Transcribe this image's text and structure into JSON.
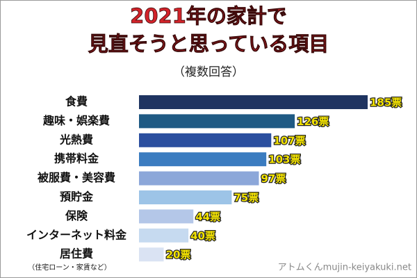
{
  "chart_data": {
    "type": "barh",
    "title": [
      "2021年の家計で",
      "見直そうと思っている項目"
    ],
    "subtitle": "（複数回答）",
    "note": "（住宅ローン・家賃など）",
    "watermark": "アトムくんmujin-keiyakuki.net",
    "categories": [
      "食費",
      "趣味・娯楽費",
      "光熱費",
      "携帯料金",
      "被服費・美容費",
      "預貯金",
      "保険",
      "インターネット料金",
      "居住費"
    ],
    "values": [
      185,
      126,
      107,
      103,
      97,
      75,
      44,
      40,
      20
    ],
    "value_labels": [
      "185票",
      "126票",
      "107票",
      "103票",
      "97票",
      "75票",
      "44票",
      "40票",
      "20票"
    ],
    "colors": [
      "#1f3461",
      "#1f5a84",
      "#2b4f9f",
      "#3b7cc0",
      "#8ca7d9",
      "#9dc4e7",
      "#b4c7e8",
      "#c6daf0",
      "#dae3f3"
    ]
  }
}
